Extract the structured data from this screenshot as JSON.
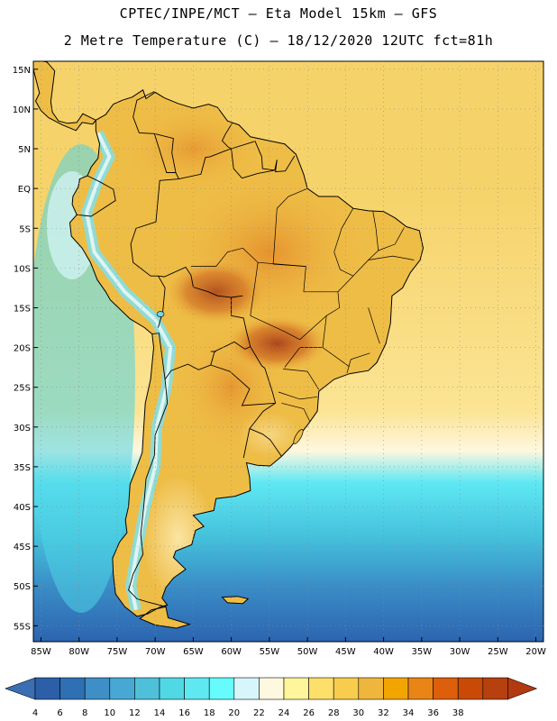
{
  "header": {
    "title_line1": "CPTEC/INPE/MCT –  Eta Model 15km – GFS",
    "title_line2": "2 Metre Temperature (C) – 18/12/2020 12UTC fct=81h"
  },
  "map": {
    "lat_labels": [
      "15N",
      "10N",
      "5N",
      "EQ",
      "5S",
      "10S",
      "15S",
      "20S",
      "25S",
      "30S",
      "35S",
      "40S",
      "45S",
      "50S",
      "55S"
    ],
    "lon_labels": [
      "85W",
      "80W",
      "75W",
      "70W",
      "65W",
      "60W",
      "55W",
      "50W",
      "45W",
      "40W",
      "35W",
      "30W",
      "25W",
      "20W"
    ],
    "lat_range": [
      -57,
      16
    ],
    "lon_range": [
      -86,
      -19
    ],
    "ocean_gradient": [
      {
        "lat": 16,
        "color": "#f6d36a"
      },
      {
        "lat": 0,
        "color": "#f6d36a"
      },
      {
        "lat": -28,
        "color": "#fbe494"
      },
      {
        "lat": -33,
        "color": "#fff7df"
      },
      {
        "lat": -37,
        "color": "#5fe8f3"
      },
      {
        "lat": -44,
        "color": "#44c0dc"
      },
      {
        "lat": -50,
        "color": "#3a8dc6"
      },
      {
        "lat": -57,
        "color": "#2c64b0"
      }
    ],
    "land_color": "#eebd46",
    "hot_color": "#b44a1d",
    "andes_color": "#7fe0ee",
    "pacific_cool_color": "#66d8ec"
  },
  "colorbar": {
    "labels": [
      "4",
      "6",
      "8",
      "10",
      "12",
      "14",
      "16",
      "18",
      "20",
      "22",
      "24",
      "26",
      "28",
      "30",
      "32",
      "34",
      "36",
      "38"
    ],
    "colors": [
      "#2c5fa8",
      "#2f6fb3",
      "#3f8ec5",
      "#47a8d4",
      "#4ec0da",
      "#50d8e4",
      "#5fe8f0",
      "#66fbfc",
      "#d6f6fc",
      "#fff8e1",
      "#fff59a",
      "#fde06a",
      "#f8cd4e",
      "#eeb63c",
      "#f2a400",
      "#e88516",
      "#dd5f0b",
      "#c84a05",
      "#b7400f"
    ],
    "left_arrow_color": "#3a6fb4",
    "right_arrow_color": "#b23a10"
  }
}
